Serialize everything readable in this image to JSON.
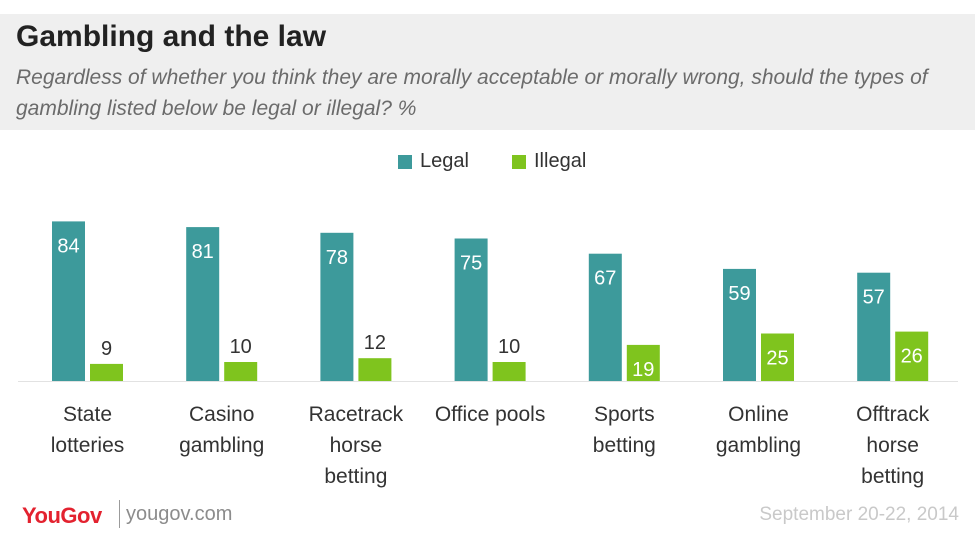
{
  "title": "Gambling and the law",
  "subtitle": "Regardless of whether you think they are morally acceptable or morally wrong, should the types of gambling listed below be legal or illegal? %",
  "footer": {
    "logo": "YouGov",
    "url": "yougov.com",
    "date": "September 20-22, 2014"
  },
  "colors": {
    "legal": "#3d9a9b",
    "illegal": "#7fc41e"
  },
  "chart_data": {
    "type": "bar",
    "title": "Gambling and the law",
    "xlabel": "",
    "ylabel": "",
    "ylim": [
      0,
      100
    ],
    "grid": false,
    "legend_position": "top-center",
    "categories": [
      [
        "State",
        "lotteries"
      ],
      [
        "Casino",
        "gambling"
      ],
      [
        "Racetrack",
        "horse",
        "betting"
      ],
      [
        "Office pools"
      ],
      [
        "Sports",
        "betting"
      ],
      [
        "Online",
        "gambling"
      ],
      [
        "Offtrack",
        "horse",
        "betting"
      ]
    ],
    "series": [
      {
        "name": "Legal",
        "values": [
          84,
          81,
          78,
          75,
          67,
          59,
          57
        ]
      },
      {
        "name": "Illegal",
        "values": [
          9,
          10,
          12,
          10,
          19,
          25,
          26
        ]
      }
    ]
  }
}
